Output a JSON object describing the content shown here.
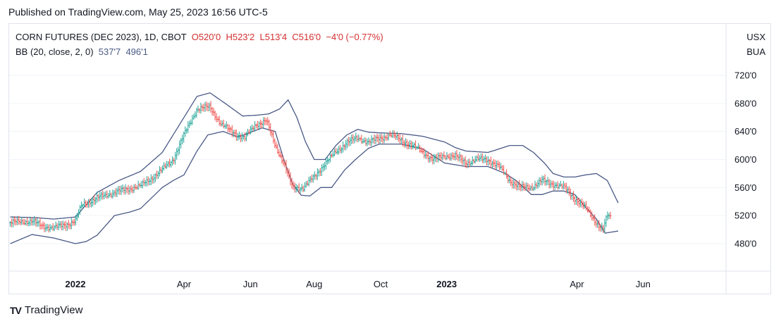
{
  "header": {
    "published": "Published on TradingView.com, May 25, 2023 16:56 UTC-5"
  },
  "legend": {
    "symbol": "CORN FUTURES (DEC 2023), 1D, CBOT",
    "open": "O520'0",
    "high": "H523'2",
    "low": "L513'4",
    "close": "C516'0",
    "change": "−4'0 (−0.77%)",
    "bb_name": "BB (20, close, 2, 0)",
    "bb_upper": "537'7",
    "bb_lower": "496'1"
  },
  "currency": {
    "code": "USX",
    "unit": "BUA"
  },
  "brand": {
    "name": "TradingView",
    "logo": "TV"
  },
  "colors": {
    "up": "#26a69a",
    "down": "#ef5350",
    "band": "#4a5a86",
    "grid": "#f0f3fa"
  },
  "chart_data": {
    "type": "candlestick",
    "y_axis": {
      "min": 460,
      "max": 740,
      "ticks": [
        480,
        520,
        560,
        600,
        640,
        680,
        720
      ],
      "tick_labels": [
        "480'0",
        "520'0",
        "560'0",
        "600'0",
        "640'0",
        "680'0",
        "720'0"
      ]
    },
    "x_axis": {
      "labels": [
        {
          "t": 0.0,
          "text": "2022",
          "bold": true
        },
        {
          "t": 5.0,
          "text": "Apr"
        },
        {
          "t": 8.06,
          "text": "Jun"
        },
        {
          "t": 11.0,
          "text": "Aug"
        },
        {
          "t": 14.06,
          "text": "Oct"
        },
        {
          "t": 17.1,
          "text": "2023",
          "bold": true
        },
        {
          "t": 23.1,
          "text": "Apr"
        },
        {
          "t": 26.15,
          "text": "Jun"
        }
      ],
      "t_range": [
        -3.0,
        27.9
      ]
    },
    "series": [
      {
        "name": "close",
        "points": [
          [
            -3.0,
            510
          ],
          [
            -2.0,
            512
          ],
          [
            -1.5,
            505
          ],
          [
            -1.0,
            502
          ],
          [
            0.0,
            512
          ],
          [
            0.3,
            535
          ],
          [
            1.0,
            545
          ],
          [
            2.0,
            555
          ],
          [
            3.0,
            562
          ],
          [
            4.0,
            585
          ],
          [
            4.5,
            600
          ],
          [
            5.0,
            635
          ],
          [
            5.6,
            672
          ],
          [
            6.2,
            675
          ],
          [
            6.7,
            650
          ],
          [
            7.2,
            640
          ],
          [
            7.8,
            630
          ],
          [
            8.3,
            650
          ],
          [
            8.8,
            655
          ],
          [
            9.2,
            620
          ],
          [
            9.6,
            595
          ],
          [
            10.0,
            560
          ],
          [
            10.5,
            560
          ],
          [
            11.0,
            575
          ],
          [
            11.5,
            595
          ],
          [
            12.0,
            610
          ],
          [
            12.5,
            625
          ],
          [
            13.0,
            630
          ],
          [
            13.5,
            625
          ],
          [
            14.0,
            630
          ],
          [
            14.5,
            635
          ],
          [
            15.0,
            628
          ],
          [
            15.5,
            620
          ],
          [
            16.0,
            610
          ],
          [
            16.5,
            600
          ],
          [
            17.0,
            605
          ],
          [
            17.5,
            605
          ],
          [
            18.0,
            595
          ],
          [
            18.5,
            600
          ],
          [
            19.0,
            600
          ],
          [
            19.5,
            590
          ],
          [
            20.0,
            570
          ],
          [
            20.5,
            560
          ],
          [
            21.0,
            560
          ],
          [
            21.5,
            570
          ],
          [
            22.0,
            565
          ],
          [
            22.5,
            560
          ],
          [
            23.0,
            545
          ],
          [
            23.5,
            530
          ],
          [
            24.0,
            510
          ],
          [
            24.3,
            500
          ],
          [
            24.5,
            520
          ],
          [
            24.7,
            516
          ]
        ]
      },
      {
        "name": "BB upper",
        "points": [
          [
            -3.0,
            518
          ],
          [
            -1.8,
            517
          ],
          [
            -1.0,
            515
          ],
          [
            0.0,
            518
          ],
          [
            1.0,
            553
          ],
          [
            2.0,
            570
          ],
          [
            3.0,
            583
          ],
          [
            4.0,
            610
          ],
          [
            5.0,
            660
          ],
          [
            5.6,
            690
          ],
          [
            6.2,
            695
          ],
          [
            6.9,
            680
          ],
          [
            7.7,
            662
          ],
          [
            8.3,
            663
          ],
          [
            8.9,
            665
          ],
          [
            9.4,
            672
          ],
          [
            9.8,
            685
          ],
          [
            10.2,
            660
          ],
          [
            10.6,
            625
          ],
          [
            11.0,
            600
          ],
          [
            11.5,
            600
          ],
          [
            12.0,
            620
          ],
          [
            12.5,
            635
          ],
          [
            13.0,
            643
          ],
          [
            13.5,
            639
          ],
          [
            14.0,
            638
          ],
          [
            15.0,
            637
          ],
          [
            16.0,
            633
          ],
          [
            17.0,
            625
          ],
          [
            17.5,
            617
          ],
          [
            18.0,
            612
          ],
          [
            19.0,
            610
          ],
          [
            20.0,
            620
          ],
          [
            20.6,
            620
          ],
          [
            21.1,
            610
          ],
          [
            21.6,
            595
          ],
          [
            22.0,
            580
          ],
          [
            22.5,
            575
          ],
          [
            23.0,
            575
          ],
          [
            23.5,
            578
          ],
          [
            24.0,
            580
          ],
          [
            24.5,
            570
          ],
          [
            25.0,
            538
          ]
        ]
      },
      {
        "name": "BB lower",
        "points": [
          [
            -3.0,
            480
          ],
          [
            -2.0,
            493
          ],
          [
            -1.0,
            488
          ],
          [
            0.0,
            480
          ],
          [
            0.5,
            483
          ],
          [
            1.0,
            492
          ],
          [
            1.8,
            520
          ],
          [
            2.5,
            525
          ],
          [
            3.0,
            530
          ],
          [
            4.0,
            560
          ],
          [
            4.5,
            570
          ],
          [
            5.0,
            578
          ],
          [
            5.6,
            612
          ],
          [
            6.1,
            635
          ],
          [
            6.8,
            640
          ],
          [
            7.5,
            632
          ],
          [
            8.0,
            638
          ],
          [
            8.6,
            645
          ],
          [
            9.2,
            640
          ],
          [
            9.6,
            600
          ],
          [
            10.0,
            565
          ],
          [
            10.4,
            549
          ],
          [
            10.8,
            548
          ],
          [
            11.3,
            560
          ],
          [
            11.8,
            560
          ],
          [
            12.4,
            585
          ],
          [
            12.9,
            600
          ],
          [
            13.5,
            616
          ],
          [
            14.0,
            622
          ],
          [
            15.0,
            622
          ],
          [
            16.0,
            615
          ],
          [
            17.0,
            595
          ],
          [
            18.0,
            590
          ],
          [
            19.0,
            590
          ],
          [
            19.8,
            580
          ],
          [
            20.3,
            570
          ],
          [
            21.0,
            550
          ],
          [
            21.5,
            550
          ],
          [
            22.0,
            555
          ],
          [
            22.5,
            555
          ],
          [
            23.0,
            550
          ],
          [
            23.5,
            532
          ],
          [
            24.0,
            515
          ],
          [
            24.4,
            495
          ],
          [
            25.0,
            498
          ]
        ]
      }
    ]
  }
}
